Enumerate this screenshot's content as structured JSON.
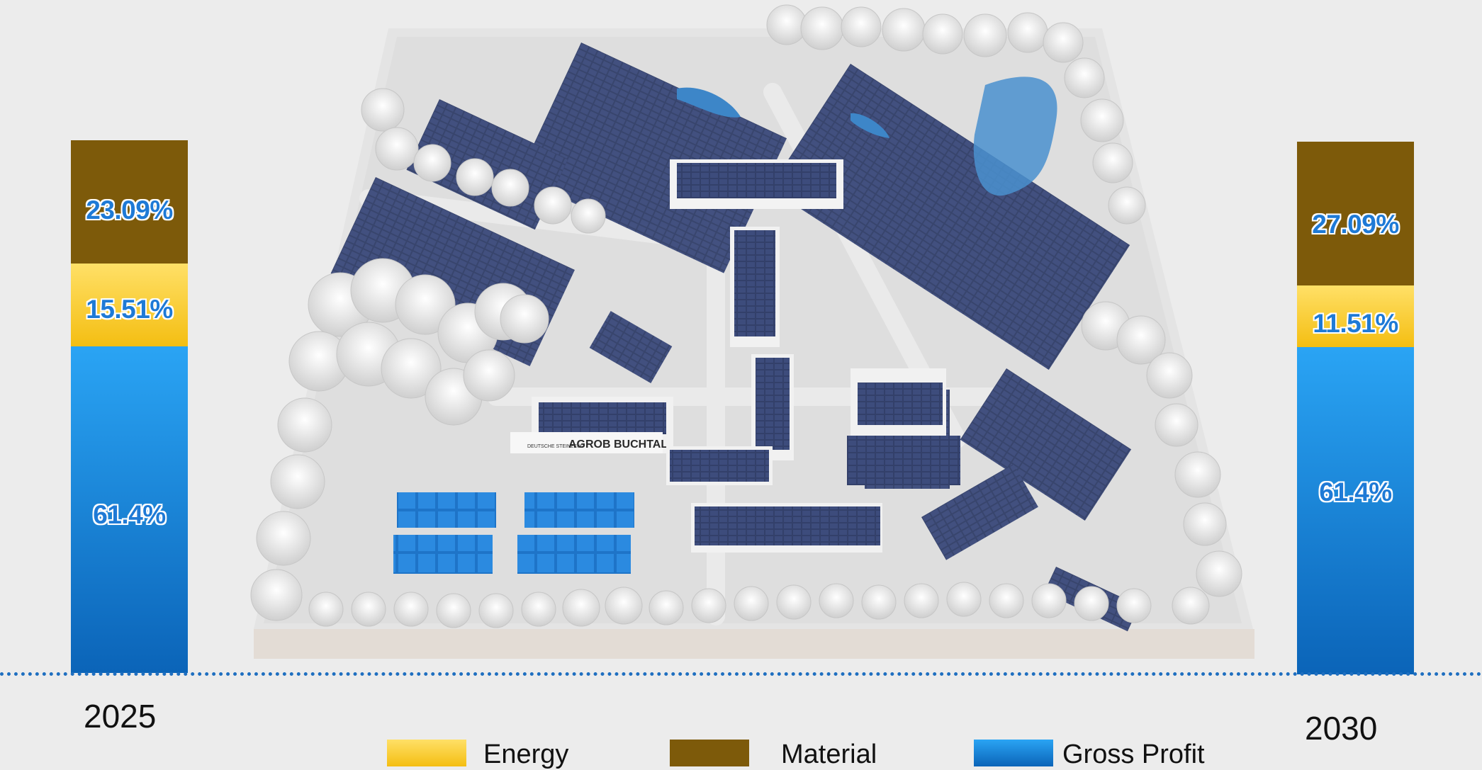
{
  "chart_data": {
    "type": "bar",
    "stacked": true,
    "categories": [
      "2025",
      "2030"
    ],
    "series": [
      {
        "name": "Gross Profit",
        "values": [
          61.4,
          61.4
        ],
        "labels": [
          "61.4%",
          "61.4%"
        ]
      },
      {
        "name": "Energy",
        "values": [
          15.51,
          11.51
        ],
        "labels": [
          "15.51%",
          "11.51%"
        ]
      },
      {
        "name": "Material",
        "values": [
          23.09,
          27.09
        ],
        "labels": [
          "23.09%",
          "27.09%"
        ]
      }
    ],
    "legend": {
      "placement": "bottom",
      "items": [
        "Energy",
        "Material",
        "Gross Profit"
      ]
    },
    "colors": {
      "Energy": "#f7c520",
      "Material": "#7d5a0a",
      "Gross Profit": "#1478cf"
    },
    "unit": "%",
    "grid": false
  },
  "illustration": {
    "sign_text": "AGROB BUCHTAL",
    "sign_small": "DEUTSCHE STEINZEUG"
  }
}
